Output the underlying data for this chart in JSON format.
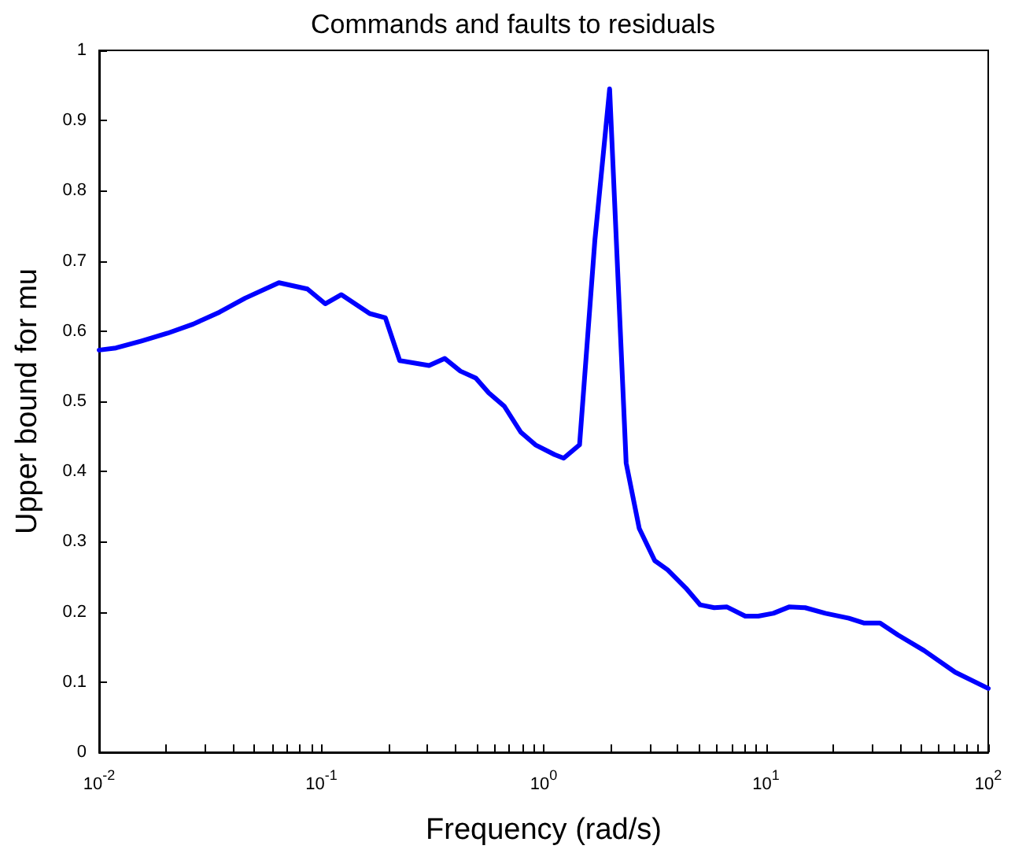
{
  "chart_data": {
    "type": "line",
    "title": "Commands and faults to residuals",
    "xlabel": "Frequency (rad/s)",
    "ylabel": "Upper bound for mu",
    "log": "x",
    "grid": false,
    "marker": "none",
    "line_style": "solid",
    "xlim": [
      0.01,
      100
    ],
    "ylim": [
      0,
      1
    ],
    "xticks": [
      {
        "value": 0.01,
        "label": "10$^{-2}$"
      },
      {
        "value": 0.02,
        "label": null
      },
      {
        "value": 0.03,
        "label": null
      },
      {
        "value": 0.04,
        "label": null
      },
      {
        "value": 0.05,
        "label": null
      },
      {
        "value": 0.06,
        "label": null
      },
      {
        "value": 0.07,
        "label": null
      },
      {
        "value": 0.08,
        "label": null
      },
      {
        "value": 0.09,
        "label": null
      },
      {
        "value": 0.1,
        "label": "10$^{-1}$"
      },
      {
        "value": 0.2,
        "label": null
      },
      {
        "value": 0.3,
        "label": null
      },
      {
        "value": 0.4,
        "label": null
      },
      {
        "value": 0.5,
        "label": null
      },
      {
        "value": 0.6,
        "label": null
      },
      {
        "value": 0.7,
        "label": null
      },
      {
        "value": 0.8,
        "label": null
      },
      {
        "value": 0.9,
        "label": null
      },
      {
        "value": 1,
        "label": "10$^{0}$"
      },
      {
        "value": 2,
        "label": null
      },
      {
        "value": 3,
        "label": null
      },
      {
        "value": 4,
        "label": null
      },
      {
        "value": 5,
        "label": null
      },
      {
        "value": 6,
        "label": null
      },
      {
        "value": 7,
        "label": null
      },
      {
        "value": 8,
        "label": null
      },
      {
        "value": 9,
        "label": null
      },
      {
        "value": 10,
        "label": "10$^{1}$"
      },
      {
        "value": 20,
        "label": null
      },
      {
        "value": 30,
        "label": null
      },
      {
        "value": 40,
        "label": null
      },
      {
        "value": 50,
        "label": null
      },
      {
        "value": 60,
        "label": null
      },
      {
        "value": 70,
        "label": null
      },
      {
        "value": 80,
        "label": null
      },
      {
        "value": 90,
        "label": null
      },
      {
        "value": 100,
        "label": "10$^{2}$"
      }
    ],
    "yticks": [
      0,
      0.1,
      0.2,
      0.3,
      0.4,
      0.5,
      0.6,
      0.7,
      0.8,
      0.9,
      1
    ],
    "x": [
      0.01,
      0.0119,
      0.0155,
      0.0203,
      0.0265,
      0.0348,
      0.0454,
      0.0644,
      0.0865,
      0.104,
      0.123,
      0.165,
      0.194,
      0.225,
      0.305,
      0.359,
      0.422,
      0.495,
      0.566,
      0.665,
      0.789,
      0.918,
      1.12,
      1.23,
      1.45,
      1.7,
      1.98,
      2.35,
      2.69,
      3.16,
      3.61,
      4.36,
      5.06,
      5.85,
      6.68,
      8.07,
      9.23,
      10.8,
      12.7,
      15.0,
      18.5,
      23.6,
      27.7,
      32.6,
      39.3,
      51.4,
      71.0,
      100
    ],
    "series": [
      {
        "color": "#0000ff",
        "values": [
          0.573,
          0.576,
          0.586,
          0.597,
          0.61,
          0.627,
          0.647,
          0.669,
          0.66,
          0.639,
          0.652,
          0.625,
          0.619,
          0.558,
          0.551,
          0.561,
          0.543,
          0.533,
          0.512,
          0.493,
          0.456,
          0.438,
          0.424,
          0.419,
          0.438,
          0.73,
          0.945,
          0.412,
          0.319,
          0.273,
          0.26,
          0.234,
          0.21,
          0.206,
          0.207,
          0.194,
          0.194,
          0.198,
          0.207,
          0.206,
          0.198,
          0.191,
          0.184,
          0.184,
          0.167,
          0.145,
          0.114,
          0.091
        ]
      }
    ]
  }
}
